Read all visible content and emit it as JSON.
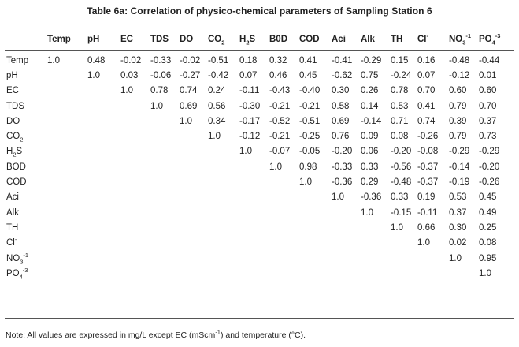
{
  "title": "Table 6a: Correlation of physico-chemical parameters of Sampling Station 6",
  "columns": [
    {
      "base": "",
      "sub": "",
      "sup": ""
    },
    {
      "base": "Temp",
      "sub": "",
      "sup": ""
    },
    {
      "base": "pH",
      "sub": "",
      "sup": ""
    },
    {
      "base": "EC",
      "sub": "",
      "sup": ""
    },
    {
      "base": "TDS",
      "sub": "",
      "sup": ""
    },
    {
      "base": "DO",
      "sub": "",
      "sup": ""
    },
    {
      "base": "CO",
      "sub": "2",
      "sup": ""
    },
    {
      "base": "H",
      "sub": "2",
      "sup": "",
      "tail": "S"
    },
    {
      "base": "B0D",
      "sub": "",
      "sup": ""
    },
    {
      "base": "COD",
      "sub": "",
      "sup": ""
    },
    {
      "base": "Aci",
      "sub": "",
      "sup": ""
    },
    {
      "base": "Alk",
      "sub": "",
      "sup": ""
    },
    {
      "base": "TH",
      "sub": "",
      "sup": ""
    },
    {
      "base": "Cl",
      "sub": "",
      "sup": "-"
    },
    {
      "base": "NO",
      "sub": "3",
      "sup": "-1"
    },
    {
      "base": "PO",
      "sub": "4",
      "sup": "-3"
    }
  ],
  "rows": [
    {
      "label": {
        "base": "Temp",
        "sub": "",
        "sup": ""
      },
      "values": [
        "1.0",
        "0.48",
        "-0.02",
        "-0.33",
        "-0.02",
        "-0.51",
        "0.18",
        "0.32",
        "0.41",
        "-0.41",
        "-0.29",
        "0.15",
        "0.16",
        "-0.48",
        "-0.44"
      ]
    },
    {
      "label": {
        "base": "pH",
        "sub": "",
        "sup": ""
      },
      "values": [
        "",
        "1.0",
        "0.03",
        "-0.06",
        "-0.27",
        "-0.42",
        "0.07",
        "0.46",
        "0.45",
        "-0.62",
        "0.75",
        "-0.24",
        "0.07",
        "-0.12",
        "0.01"
      ]
    },
    {
      "label": {
        "base": "EC",
        "sub": "",
        "sup": ""
      },
      "values": [
        "",
        "",
        "1.0",
        "0.78",
        "0.74",
        "0.24",
        "-0.11",
        "-0.43",
        "-0.40",
        "0.30",
        "0.26",
        "0.78",
        "0.70",
        "0.60",
        "0.60"
      ]
    },
    {
      "label": {
        "base": "TDS",
        "sub": "",
        "sup": ""
      },
      "values": [
        "",
        "",
        "",
        "1.0",
        "0.69",
        "0.56",
        "-0.30",
        "-0.21",
        "-0.21",
        "0.58",
        "0.14",
        "0.53",
        "0.41",
        "0.79",
        "0.70"
      ]
    },
    {
      "label": {
        "base": "DO",
        "sub": "",
        "sup": ""
      },
      "values": [
        "",
        "",
        "",
        "",
        "1.0",
        "0.34",
        "-0.17",
        "-0.52",
        "-0.51",
        "0.69",
        "-0.14",
        "0.71",
        "0.74",
        "0.39",
        "0.37"
      ]
    },
    {
      "label": {
        "base": "CO",
        "sub": "2",
        "sup": ""
      },
      "values": [
        "",
        "",
        "",
        "",
        "",
        "1.0",
        "-0.12",
        "-0.21",
        "-0.25",
        "0.76",
        "0.09",
        "0.08",
        "-0.26",
        "0.79",
        "0.73"
      ]
    },
    {
      "label": {
        "base": "H",
        "sub": "2",
        "sup": "",
        "tail": "S"
      },
      "values": [
        "",
        "",
        "",
        "",
        "",
        "",
        "1.0",
        "-0.07",
        "-0.05",
        "-0.20",
        "0.06",
        "-0.20",
        "-0.08",
        "-0.29",
        "-0.29"
      ]
    },
    {
      "label": {
        "base": "BOD",
        "sub": "",
        "sup": ""
      },
      "values": [
        "",
        "",
        "",
        "",
        "",
        "",
        "",
        "1.0",
        "0.98",
        "-0.33",
        "0.33",
        "-0.56",
        "-0.37",
        "-0.14",
        "-0.20"
      ]
    },
    {
      "label": {
        "base": "COD",
        "sub": "",
        "sup": ""
      },
      "values": [
        "",
        "",
        "",
        "",
        "",
        "",
        "",
        "",
        "1.0",
        "-0.36",
        "0.29",
        "-0.48",
        "-0.37",
        "-0.19",
        "-0.26"
      ]
    },
    {
      "label": {
        "base": "Aci",
        "sub": "",
        "sup": ""
      },
      "values": [
        "",
        "",
        "",
        "",
        "",
        "",
        "",
        "",
        "",
        "1.0",
        "-0.36",
        "0.33",
        "0.19",
        "0.53",
        "0.45"
      ]
    },
    {
      "label": {
        "base": "Alk",
        "sub": "",
        "sup": ""
      },
      "values": [
        "",
        "",
        "",
        "",
        "",
        "",
        "",
        "",
        "",
        "",
        "1.0",
        "-0.15",
        "-0.11",
        "0.37",
        "0.49"
      ]
    },
    {
      "label": {
        "base": "TH",
        "sub": "",
        "sup": ""
      },
      "values": [
        "",
        "",
        "",
        "",
        "",
        "",
        "",
        "",
        "",
        "",
        "",
        "1.0",
        "0.66",
        "0.30",
        "0.25"
      ]
    },
    {
      "label": {
        "base": "Cl",
        "sub": "",
        "sup": "-"
      },
      "values": [
        "",
        "",
        "",
        "",
        "",
        "",
        "",
        "",
        "",
        "",
        "",
        "",
        "1.0",
        "0.02",
        "0.08"
      ]
    },
    {
      "label": {
        "base": "NO",
        "sub": "3",
        "sup": "-1"
      },
      "values": [
        "",
        "",
        "",
        "",
        "",
        "",
        "",
        "",
        "",
        "",
        "",
        "",
        "",
        "1.0",
        "0.95"
      ]
    },
    {
      "label": {
        "base": "PO",
        "sub": "4",
        "sup": "-3"
      },
      "values": [
        "",
        "",
        "",
        "",
        "",
        "",
        "",
        "",
        "",
        "",
        "",
        "",
        "",
        "",
        "1.0"
      ]
    }
  ],
  "note": {
    "before": "Note: All values are expressed in mg/L except EC (mScm",
    "sup": "-1",
    "after": ") and temperature (°C)."
  }
}
